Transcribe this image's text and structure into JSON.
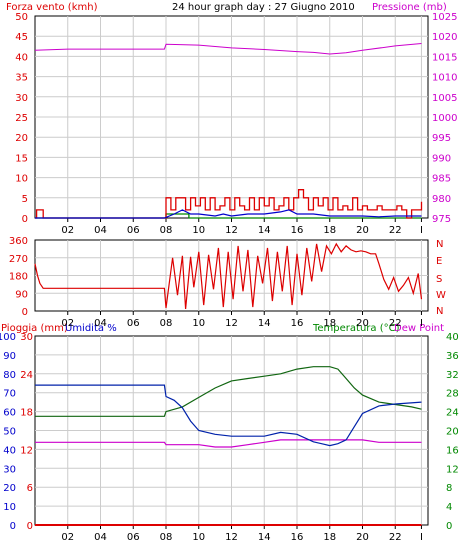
{
  "header": {
    "left_label": "Forza vento (kmh)",
    "title": "24 hour graph day : 27 Giugno 2010",
    "right_label": "Pressione (mb)"
  },
  "bottom_header": {
    "left_label_1": "Pioggia (mm)",
    "left_label_2": "Umidita %",
    "right_label_1": "Temperatura (°C)",
    "right_label_2": "Dew Point"
  },
  "colors": {
    "wind": "#dd0000",
    "wind_avg": "#0000cc",
    "wind_green": "#008800",
    "pressure": "#cc00cc",
    "direction": "#dd0000",
    "humidity": "#0022aa",
    "temperature": "#116611",
    "dewpoint": "#cc00cc",
    "rain": "#dd0000",
    "grid": "#cccccc",
    "axis_red": "#dd0000",
    "axis_magenta": "#cc00cc",
    "axis_blue": "#0000cc",
    "axis_green": "#008800"
  },
  "x_ticks": [
    "02",
    "04",
    "06",
    "08",
    "10",
    "12",
    "14",
    "16",
    "18",
    "20",
    "22",
    "I"
  ],
  "chart_data": [
    {
      "type": "line",
      "name": "wind-pressure",
      "title": "24 hour graph day : 27 Giugno 2010",
      "xlim": [
        0,
        24
      ],
      "ylabel": "Forza vento (kmh)",
      "ylim": [
        0,
        50
      ],
      "y_ticks": [
        "0",
        "5",
        "10",
        "15",
        "20",
        "25",
        "30",
        "35",
        "40",
        "45",
        "50"
      ],
      "y2label": "Pressione (mb)",
      "y2lim": [
        975,
        1025
      ],
      "y2_ticks": [
        "975",
        "980",
        "985",
        "990",
        "995",
        "1000",
        "1005",
        "1010",
        "1015",
        "1020",
        "1025"
      ],
      "series": [
        {
          "name": "Pressione (mb)",
          "axis": "right",
          "x": [
            0,
            2,
            4,
            6,
            7.9,
            8.0,
            10,
            12,
            14,
            16,
            17,
            18,
            19,
            20,
            22,
            23.6
          ],
          "values": [
            1016.5,
            1016.8,
            1016.8,
            1016.8,
            1016.8,
            1018.0,
            1017.8,
            1017.1,
            1016.7,
            1016.2,
            1016.0,
            1015.6,
            1015.9,
            1016.5,
            1017.6,
            1018.2
          ]
        },
        {
          "name": "Forza vento (kmh)",
          "axis": "left",
          "x": [
            0.0,
            0.1,
            0.4,
            0.5,
            7.9,
            8.0,
            8.3,
            8.6,
            8.9,
            9.2,
            9.5,
            9.8,
            10.1,
            10.4,
            10.7,
            11.0,
            11.3,
            11.6,
            11.9,
            12.2,
            12.5,
            12.8,
            13.1,
            13.4,
            13.7,
            14.0,
            14.3,
            14.6,
            14.9,
            15.2,
            15.5,
            15.8,
            16.1,
            16.4,
            16.7,
            17.0,
            17.3,
            17.6,
            17.9,
            18.2,
            18.5,
            18.8,
            19.1,
            19.4,
            19.7,
            20.0,
            20.3,
            20.6,
            20.9,
            21.2,
            21.5,
            21.8,
            22.1,
            22.4,
            22.7,
            23.0,
            23.3,
            23.6
          ],
          "values": [
            0,
            2,
            2,
            0,
            0,
            5,
            2,
            5,
            5,
            2,
            5,
            3,
            5,
            2,
            5,
            2,
            3,
            5,
            2,
            5,
            3,
            2,
            5,
            2,
            5,
            3,
            5,
            2,
            3,
            5,
            2,
            5,
            7,
            5,
            2,
            5,
            3,
            5,
            2,
            5,
            2,
            3,
            2,
            5,
            2,
            3,
            2,
            2,
            3,
            2,
            2,
            2,
            3,
            2,
            0,
            2,
            2,
            4
          ]
        },
        {
          "name": "wind-avg",
          "axis": "left",
          "x": [
            0,
            7.9,
            8.5,
            9.0,
            9.5,
            10.0,
            11.0,
            11.5,
            12.0,
            13.0,
            14.0,
            15.0,
            15.5,
            16.0,
            17.0,
            18.0,
            19.0,
            20.0,
            21.0,
            22.0,
            23.6
          ],
          "values": [
            0,
            0,
            1,
            2,
            1,
            1,
            0.5,
            1,
            0.5,
            1,
            1,
            1.5,
            2,
            1,
            1,
            0.5,
            0.5,
            0.5,
            0.3,
            0.5,
            0.5
          ]
        },
        {
          "name": "wind-green",
          "axis": "left",
          "x": [
            0,
            7.9,
            8.0,
            9.0,
            9.4,
            23.6
          ],
          "values": [
            0,
            0,
            1,
            1,
            0,
            0
          ]
        }
      ]
    },
    {
      "type": "line",
      "name": "wind-direction",
      "xlim": [
        0,
        24
      ],
      "ylim": [
        0,
        360
      ],
      "y_ticks": [
        "0",
        "90",
        "180",
        "270",
        "360"
      ],
      "y2_ticks": [
        "N",
        "W",
        "S",
        "E",
        "N"
      ],
      "series": [
        {
          "name": "direction",
          "x": [
            0.0,
            0.15,
            0.3,
            0.5,
            0.8,
            7.9,
            8.0,
            8.4,
            8.7,
            9.0,
            9.2,
            9.5,
            9.7,
            10.0,
            10.3,
            10.6,
            10.9,
            11.2,
            11.5,
            11.8,
            12.1,
            12.4,
            12.7,
            13.0,
            13.3,
            13.6,
            13.9,
            14.2,
            14.5,
            14.8,
            15.1,
            15.4,
            15.7,
            16.0,
            16.3,
            16.6,
            16.9,
            17.2,
            17.5,
            17.8,
            18.1,
            18.4,
            18.7,
            19.0,
            19.3,
            19.6,
            19.9,
            20.2,
            20.5,
            20.8,
            21.0,
            21.3,
            21.6,
            21.9,
            22.2,
            22.5,
            22.8,
            23.1,
            23.4,
            23.6
          ],
          "values": [
            240,
            180,
            140,
            115,
            115,
            115,
            15,
            270,
            80,
            280,
            10,
            275,
            120,
            300,
            30,
            285,
            110,
            320,
            20,
            300,
            60,
            330,
            100,
            310,
            20,
            280,
            140,
            320,
            50,
            300,
            100,
            330,
            30,
            290,
            80,
            320,
            150,
            340,
            200,
            330,
            290,
            340,
            300,
            330,
            310,
            300,
            305,
            300,
            290,
            290,
            240,
            160,
            110,
            170,
            100,
            130,
            170,
            90,
            190,
            60
          ]
        }
      ]
    },
    {
      "type": "line",
      "name": "temp-humidity",
      "xlim": [
        0,
        24
      ],
      "ylabel": "Umidita %",
      "ylim": [
        0,
        100
      ],
      "y_ticks": [
        "0",
        "10",
        "20",
        "30",
        "40",
        "50",
        "60",
        "70",
        "80",
        "90",
        "100"
      ],
      "rain_ylabel": "Pioggia (mm)",
      "rain_ylim": [
        0,
        30
      ],
      "rain_ticks": [
        "0",
        "6",
        "12",
        "18",
        "24",
        "30"
      ],
      "y2label": "Temperatura (°C)",
      "y2lim": [
        0,
        40
      ],
      "y2_ticks": [
        "0",
        "4",
        "8",
        "12",
        "16",
        "20",
        "24",
        "28",
        "32",
        "36",
        "40"
      ],
      "series": [
        {
          "name": "Umidita %",
          "axis": "left",
          "x": [
            0,
            2,
            4,
            6,
            7.9,
            8.0,
            8.5,
            9.0,
            9.5,
            10.0,
            11.0,
            12.0,
            13.0,
            14.0,
            15.0,
            16.0,
            17.0,
            17.5,
            18.0,
            18.5,
            19.0,
            19.5,
            20.0,
            21.0,
            22.0,
            23.6
          ],
          "values": [
            74,
            74,
            74,
            74,
            74,
            68,
            66,
            62,
            55,
            50,
            48,
            47,
            47,
            47,
            49,
            48,
            44,
            43,
            42,
            43,
            45,
            52,
            59,
            63,
            64,
            65
          ]
        },
        {
          "name": "Temperatura (°C)",
          "axis": "right",
          "x": [
            0,
            2,
            4,
            6,
            7.9,
            8.0,
            9.0,
            10.0,
            11.0,
            12.0,
            13.0,
            14.0,
            15.0,
            16.0,
            17.0,
            18.0,
            18.5,
            19.0,
            19.5,
            20.0,
            21.0,
            22.0,
            23.0,
            23.6
          ],
          "values": [
            23,
            23,
            23,
            23,
            23,
            24,
            25,
            27,
            29,
            30.5,
            31,
            31.5,
            32,
            33,
            33.5,
            33.5,
            33,
            31,
            29,
            27.5,
            26,
            25.5,
            25,
            24.5
          ]
        },
        {
          "name": "Dew Point",
          "axis": "right",
          "x": [
            0,
            2,
            4,
            6,
            7.9,
            8.0,
            9.0,
            10.0,
            11.0,
            12.0,
            13.0,
            14.0,
            15.0,
            16.0,
            17.0,
            18.0,
            19.0,
            20.0,
            21.0,
            22.0,
            23.6
          ],
          "values": [
            17.5,
            17.5,
            17.5,
            17.5,
            17.5,
            17,
            17,
            17,
            16.5,
            16.5,
            17,
            17.5,
            18,
            18,
            18,
            18,
            18,
            18,
            17.5,
            17.5,
            17.5
          ]
        },
        {
          "name": "Pioggia (mm)",
          "axis": "rain",
          "x": [
            0,
            23.6
          ],
          "values": [
            0,
            0
          ]
        }
      ]
    }
  ]
}
